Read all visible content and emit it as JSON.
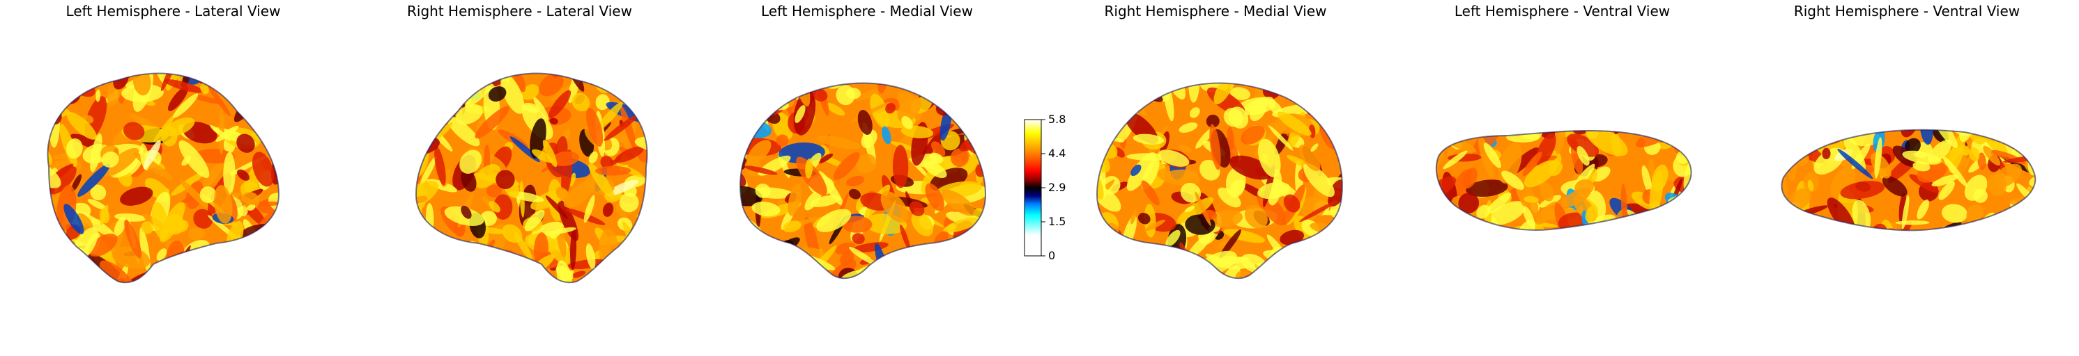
{
  "panels": [
    {
      "title": "Left Hemisphere - Lateral View",
      "view": "lateral",
      "hemi": "left"
    },
    {
      "title": "Right Hemisphere - Lateral View",
      "view": "lateral",
      "hemi": "right"
    },
    {
      "title": "Left Hemisphere - Medial View",
      "view": "medial",
      "hemi": "left"
    },
    {
      "title": "Right Hemisphere - Medial View",
      "view": "medial",
      "hemi": "right"
    },
    {
      "title": "Left Hemisphere - Ventral View",
      "view": "ventral",
      "hemi": "left"
    },
    {
      "title": "Right Hemisphere - Ventral View",
      "view": "ventral",
      "hemi": "right"
    }
  ],
  "colorbar": {
    "ticks": [
      "5.8",
      "4.4",
      "2.9",
      "1.5",
      "0"
    ],
    "colors": [
      "#ffffff",
      "#ffff00",
      "#ff8000",
      "#ff0000",
      "#800000",
      "#000000",
      "#000080",
      "#0080ff",
      "#00ffff",
      "#ffffff"
    ]
  }
}
